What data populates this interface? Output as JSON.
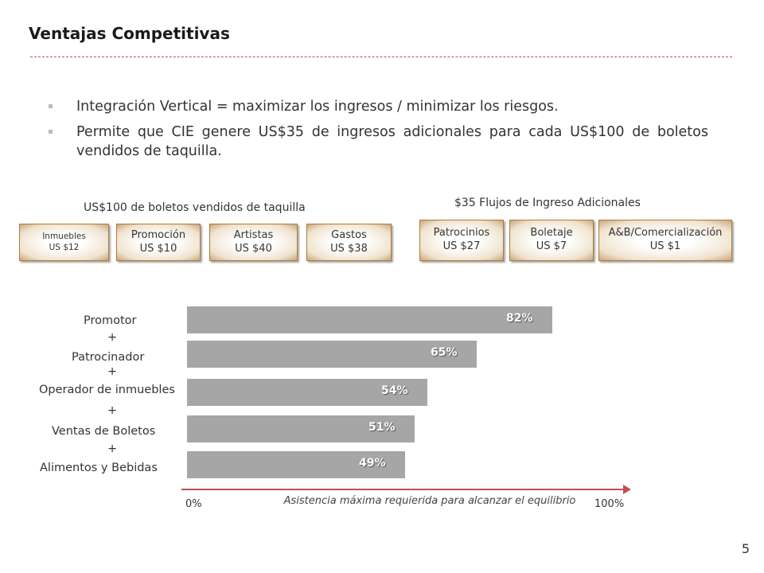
{
  "slide": {
    "title": "Ventajas Competitivas",
    "bullets": [
      "Integración Vertical = maximizar los ingresos / minimizar los riesgos.",
      "Permite que CIE genere US$35 de ingresos adicionales para cada US$100 de boletos vendidos de taquilla."
    ],
    "page_number": "5"
  },
  "left_group": {
    "label": "US$100 de boletos vendidos de taquilla",
    "boxes": [
      {
        "name": "Inmuebles",
        "value": "US $12"
      },
      {
        "name": "Promoción",
        "value": "US $10"
      },
      {
        "name": "Artistas",
        "value": "US $40"
      },
      {
        "name": "Gastos",
        "value": "US $38"
      }
    ]
  },
  "right_group": {
    "label": "$35 Flujos de Ingreso  Adicionales",
    "boxes": [
      {
        "name": "Patrocinios",
        "value": "US $27"
      },
      {
        "name": "Boletaje",
        "value": "US $7"
      },
      {
        "name": "A&B/Comercialización",
        "value": "US $1"
      }
    ]
  },
  "chart_data": {
    "type": "bar",
    "orientation": "horizontal",
    "categories_labels": [
      "Promotor",
      "Patrocinador",
      "Operador de inmuebles",
      "Ventas de Boletos",
      "Alimentos y Bebidas"
    ],
    "plus_sign": "+",
    "values": [
      82,
      65,
      54,
      51,
      49
    ],
    "value_labels": [
      "82%",
      "65%",
      "54%",
      "51%",
      "49%"
    ],
    "xlim": [
      0,
      100
    ],
    "x_min_label": "0%",
    "x_max_label": "100%",
    "xlabel": "Asistencia máxima requierida para alcanzar el equilibrio",
    "bar_color": "#a6a6a6",
    "axis_color": "#c0504d"
  }
}
